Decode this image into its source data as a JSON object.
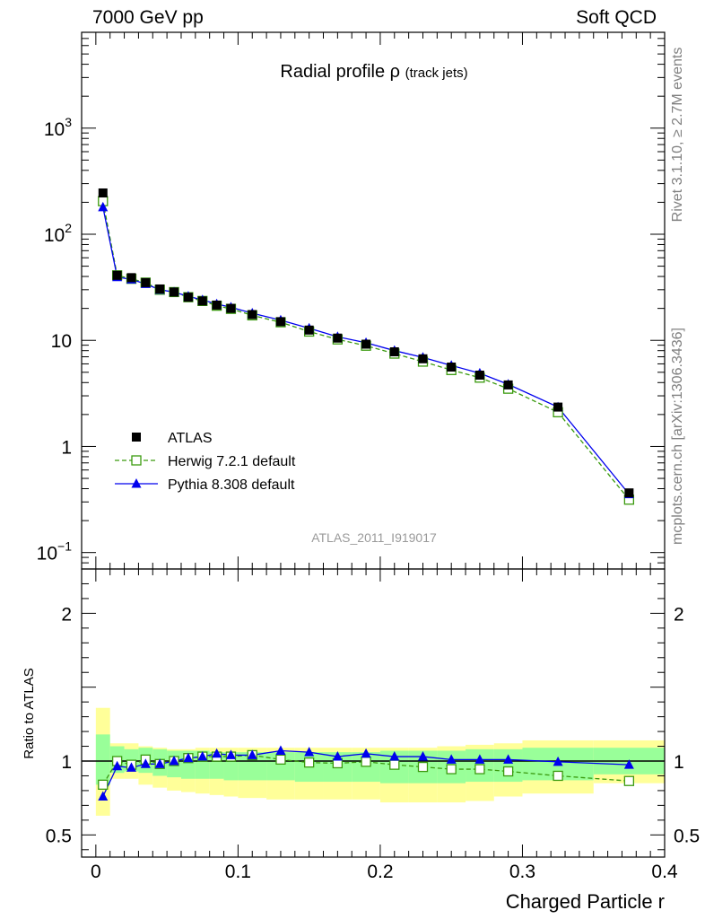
{
  "header": {
    "energy_label": "7000 GeV pp",
    "process_label": "Soft QCD"
  },
  "side": {
    "rivet_label": "Rivet 3.1.10, ≥ 2.7M events",
    "source_label": "mcplots.cern.ch [arXiv:1306.3436]"
  },
  "chart_data": [
    {
      "type": "scatter",
      "panel": "main",
      "title_main": "Radial profile",
      "title_symbol": "ρ",
      "title_sub": "(track jets)",
      "analysis_label": "ATLAS_2011_I919017",
      "yscale": "log",
      "ylim": [
        0.07,
        8000
      ],
      "xlim": [
        -0.01,
        0.4
      ],
      "ytick_labels": [
        {
          "value": 0.1,
          "base": "10",
          "exp": "−1"
        },
        {
          "value": 1,
          "base": "1",
          "exp": ""
        },
        {
          "value": 10,
          "base": "10",
          "exp": ""
        },
        {
          "value": 100,
          "base": "10",
          "exp": "2"
        },
        {
          "value": 1000,
          "base": "10",
          "exp": "3"
        }
      ],
      "legend_position": "lower-left",
      "x": [
        0.005,
        0.015,
        0.025,
        0.035,
        0.045,
        0.055,
        0.065,
        0.075,
        0.085,
        0.095,
        0.11,
        0.13,
        0.15,
        0.17,
        0.19,
        0.21,
        0.23,
        0.25,
        0.27,
        0.29,
        0.325,
        0.375
      ],
      "series": [
        {
          "name": "ATLAS",
          "color": "#000000",
          "marker": "filled-square",
          "line": "none",
          "values": [
            245,
            41,
            39,
            35,
            30.5,
            28.5,
            25.5,
            23.5,
            21.5,
            20,
            17.5,
            15,
            12.5,
            10.5,
            9.2,
            7.8,
            6.7,
            5.6,
            4.7,
            3.8,
            2.35,
            0.365
          ]
        },
        {
          "name": "Herwig 7.2.1 default",
          "color": "#3a9a0e",
          "marker": "open-square",
          "line": "dashed",
          "values": [
            205,
            41,
            38,
            35,
            30,
            28.5,
            25.5,
            23.5,
            21.2,
            19.8,
            17.2,
            14.8,
            12.1,
            10.2,
            8.9,
            7.5,
            6.3,
            5.25,
            4.45,
            3.5,
            2.1,
            0.315
          ]
        },
        {
          "name": "Pythia 8.308 default",
          "color": "#0000ee",
          "marker": "filled-triangle",
          "line": "solid",
          "values": [
            180,
            39.5,
            37.5,
            34,
            30,
            28.5,
            26,
            24,
            22,
            20.5,
            18,
            15.5,
            13,
            10.8,
            9.5,
            8,
            6.9,
            5.8,
            4.9,
            3.85,
            2.35,
            0.355
          ]
        }
      ]
    },
    {
      "type": "line",
      "panel": "ratio",
      "ylabel": "Ratio to ATLAS",
      "xlabel": "Charged Particle r",
      "ylim": [
        0.35,
        2.3
      ],
      "xlim": [
        -0.01,
        0.4
      ],
      "ytick_labels": [
        {
          "value": 0.5,
          "label": "0.5"
        },
        {
          "value": 1,
          "label": "1"
        },
        {
          "value": 2,
          "label": "2"
        }
      ],
      "xtick_labels": [
        {
          "value": 0,
          "label": "0"
        },
        {
          "value": 0.1,
          "label": "0.1"
        },
        {
          "value": 0.2,
          "label": "0.2"
        },
        {
          "value": 0.3,
          "label": "0.3"
        },
        {
          "value": 0.4,
          "label": "0.4"
        }
      ],
      "bin_edges": [
        0,
        0.01,
        0.02,
        0.03,
        0.04,
        0.05,
        0.06,
        0.07,
        0.08,
        0.09,
        0.1,
        0.12,
        0.14,
        0.16,
        0.18,
        0.2,
        0.22,
        0.24,
        0.26,
        0.28,
        0.3,
        0.35,
        0.4
      ],
      "band_colors": {
        "stat": "#99ff99",
        "total": "#ffff99"
      },
      "stat_band": [
        [
          0.84,
          1.18
        ],
        [
          0.92,
          1.1
        ],
        [
          0.93,
          1.08
        ],
        [
          0.92,
          1.09
        ],
        [
          0.9,
          1.08
        ],
        [
          0.89,
          1.07
        ],
        [
          0.88,
          1.07
        ],
        [
          0.88,
          1.07
        ],
        [
          0.88,
          1.06
        ],
        [
          0.87,
          1.06
        ],
        [
          0.87,
          1.06
        ],
        [
          0.87,
          1.06
        ],
        [
          0.86,
          1.06
        ],
        [
          0.86,
          1.06
        ],
        [
          0.86,
          1.06
        ],
        [
          0.85,
          1.07
        ],
        [
          0.85,
          1.07
        ],
        [
          0.85,
          1.07
        ],
        [
          0.86,
          1.08
        ],
        [
          0.86,
          1.08
        ],
        [
          0.87,
          1.09
        ],
        [
          0.91,
          1.09
        ]
      ],
      "total_band": [
        [
          0.63,
          1.36
        ],
        [
          0.88,
          1.12
        ],
        [
          0.88,
          1.12
        ],
        [
          0.84,
          1.1
        ],
        [
          0.82,
          1.09
        ],
        [
          0.8,
          1.08
        ],
        [
          0.79,
          1.08
        ],
        [
          0.78,
          1.09
        ],
        [
          0.77,
          1.09
        ],
        [
          0.76,
          1.09
        ],
        [
          0.75,
          1.09
        ],
        [
          0.74,
          1.09
        ],
        [
          0.74,
          1.09
        ],
        [
          0.74,
          1.09
        ],
        [
          0.74,
          1.09
        ],
        [
          0.72,
          1.09
        ],
        [
          0.72,
          1.09
        ],
        [
          0.72,
          1.1
        ],
        [
          0.73,
          1.11
        ],
        [
          0.76,
          1.12
        ],
        [
          0.78,
          1.14
        ],
        [
          0.85,
          1.14
        ]
      ],
      "series": [
        {
          "name": "Herwig 7.2.1 default",
          "color": "#3a9a0e",
          "marker": "open-square",
          "line": "dashed",
          "values": [
            0.84,
            1.0,
            0.975,
            1.01,
            0.98,
            1.0,
            1.02,
            1.03,
            1.03,
            1.03,
            1.04,
            1.01,
            0.99,
            0.985,
            0.995,
            0.975,
            0.96,
            0.945,
            0.945,
            0.93,
            0.9,
            0.865
          ]
        },
        {
          "name": "Pythia 8.308 default",
          "color": "#0000ee",
          "marker": "filled-triangle",
          "line": "solid",
          "values": [
            0.76,
            0.965,
            0.955,
            0.98,
            0.98,
            1.0,
            1.02,
            1.03,
            1.05,
            1.04,
            1.04,
            1.07,
            1.06,
            1.03,
            1.05,
            1.03,
            1.03,
            1.01,
            1.01,
            1.01,
            0.995,
            0.975
          ]
        }
      ]
    }
  ]
}
